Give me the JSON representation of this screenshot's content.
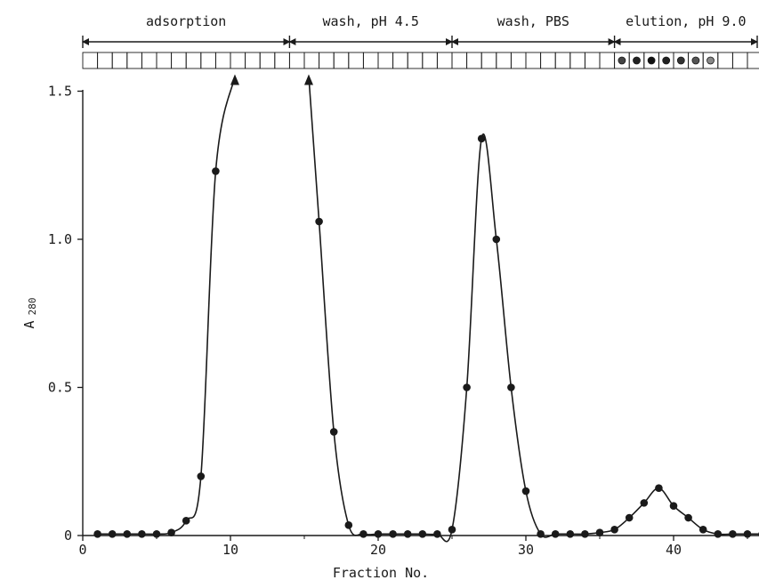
{
  "chart_data": {
    "type": "line",
    "title": "",
    "xlabel": "Fraction No.",
    "ylabel": "A",
    "ylabel_subscript": "280",
    "xlim": [
      0,
      46
    ],
    "ylim": [
      0,
      1.5
    ],
    "x_ticks": [
      0,
      10,
      20,
      30,
      40
    ],
    "x_tick_labels": [
      "0",
      "10",
      "20",
      "30",
      "40"
    ],
    "y_ticks": [
      0,
      0.5,
      1.0,
      1.5
    ],
    "y_tick_labels": [
      "0",
      "0.5",
      "1.0",
      "1.5"
    ],
    "grid": false,
    "legend": "none",
    "colors": {
      "line": "#1a1a1a",
      "marker": "#1a1a1a",
      "background": "#ffffff"
    },
    "phases": [
      {
        "label": "adsorption",
        "start": 0,
        "end": 14
      },
      {
        "label": "wash, pH 4.5",
        "start": 14,
        "end": 25
      },
      {
        "label": "wash, PBS",
        "start": 25,
        "end": 36
      },
      {
        "label": "elution, pH 9.0",
        "start": 36,
        "end": 46
      }
    ],
    "fraction_tubes": {
      "count": 46,
      "filled_tubes": [
        37,
        38,
        39,
        40,
        41,
        42,
        43
      ]
    },
    "off_scale_markers": [
      10.3,
      15.3
    ],
    "series": [
      {
        "x": [
          1,
          2,
          3,
          4,
          5,
          6,
          7,
          8,
          9,
          10,
          16,
          17,
          18,
          19,
          20,
          21,
          22,
          23,
          24,
          25,
          26,
          27,
          28,
          29,
          30,
          31,
          32,
          33,
          34,
          35,
          36,
          37,
          38,
          39,
          40,
          41,
          42,
          43,
          44,
          45,
          46
        ],
        "y": [
          0.005,
          0.005,
          0.005,
          0.005,
          0.005,
          0.01,
          0.05,
          0.2,
          1.23,
          1.55,
          1.06,
          0.35,
          0.035,
          0.005,
          0.005,
          0.005,
          0.005,
          0.005,
          0.005,
          0.02,
          0.5,
          1.34,
          1.0,
          0.5,
          0.15,
          0.005,
          0.005,
          0.005,
          0.005,
          0.01,
          0.02,
          0.06,
          0.11,
          0.16,
          0.1,
          0.06,
          0.02,
          0.005,
          0.005,
          0.005,
          0.005
        ],
        "markers": [
          true,
          true,
          true,
          true,
          true,
          true,
          true,
          true,
          true,
          false,
          true,
          true,
          true,
          true,
          true,
          true,
          true,
          true,
          true,
          true,
          true,
          true,
          true,
          true,
          true,
          true,
          true,
          true,
          true,
          true,
          true,
          true,
          true,
          true,
          true,
          true,
          true,
          true,
          true,
          true,
          true
        ]
      }
    ]
  }
}
